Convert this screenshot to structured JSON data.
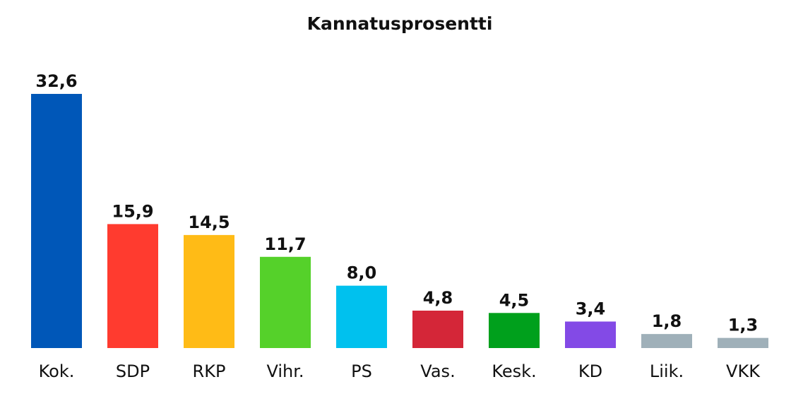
{
  "chart_data": {
    "type": "bar",
    "title": "Kannatusprosentti",
    "xlabel": "",
    "ylabel": "",
    "ylim": [
      0,
      32.6
    ],
    "grid": false,
    "categories": [
      "Kok.",
      "SDP",
      "RKP",
      "Vihr.",
      "PS",
      "Vas.",
      "Kesk.",
      "KD",
      "Liik.",
      "VKK"
    ],
    "values": [
      32.6,
      15.9,
      14.5,
      11.7,
      8.0,
      4.8,
      4.5,
      3.4,
      1.8,
      1.3
    ],
    "value_labels": [
      "32,6",
      "15,9",
      "14,5",
      "11,7",
      "8,0",
      "4,8",
      "4,5",
      "3,4",
      "1,8",
      "1,3"
    ],
    "colors": [
      "#0057b8",
      "#ff3b2f",
      "#ffbb16",
      "#55d12a",
      "#00c1ee",
      "#d42638",
      "#00a01c",
      "#834ae6",
      "#9fb0b9",
      "#9fb0b9"
    ]
  }
}
